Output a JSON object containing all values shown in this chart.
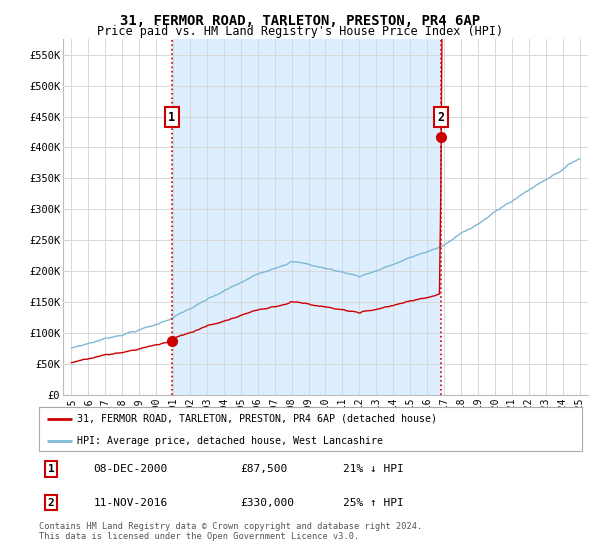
{
  "title": "31, FERMOR ROAD, TARLETON, PRESTON, PR4 6AP",
  "subtitle": "Price paid vs. HM Land Registry's House Price Index (HPI)",
  "background_color": "#ffffff",
  "grid_color": "#d8d8d8",
  "shade_color": "#ddeeff",
  "ylim": [
    0,
    575000
  ],
  "yticks": [
    0,
    50000,
    100000,
    150000,
    200000,
    250000,
    300000,
    350000,
    400000,
    450000,
    500000,
    550000
  ],
  "ytick_labels": [
    "£0",
    "£50K",
    "£100K",
    "£150K",
    "£200K",
    "£250K",
    "£300K",
    "£350K",
    "£400K",
    "£450K",
    "£500K",
    "£550K"
  ],
  "sale1_t": 2000.917,
  "sale1_val": 87500,
  "sale2_t": 2016.833,
  "sale2_val": 330000,
  "hpi_color": "#7eb8d4",
  "price_color": "#cc0000",
  "vline_color": "#cc0000",
  "legend1": "31, FERMOR ROAD, TARLETON, PRESTON, PR4 6AP (detached house)",
  "legend2": "HPI: Average price, detached house, West Lancashire",
  "table_data": [
    {
      "num": "1",
      "date": "08-DEC-2000",
      "price": "£87,500",
      "change": "21% ↓ HPI"
    },
    {
      "num": "2",
      "date": "11-NOV-2016",
      "price": "£330,000",
      "change": "25% ↑ HPI"
    }
  ],
  "footer": "Contains HM Land Registry data © Crown copyright and database right 2024.\nThis data is licensed under the Open Government Licence v3.0.",
  "start_year": 1995,
  "end_year": 2025
}
